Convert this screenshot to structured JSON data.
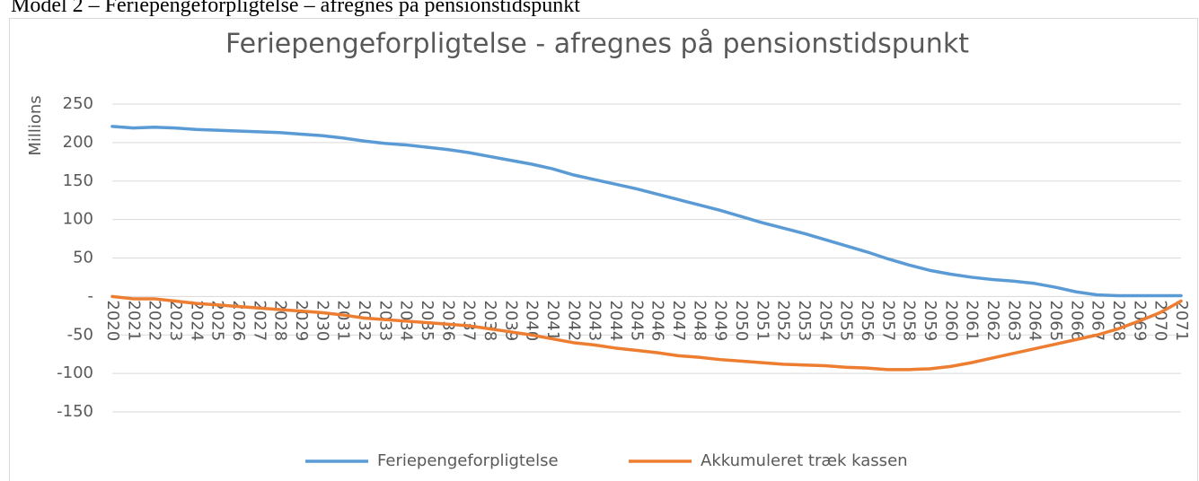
{
  "caption": "Model 2 – Feriepengeforpligtelse – afregnes på pensionstidspunkt",
  "chart_data": {
    "type": "line",
    "title": "Feriepengeforpligtelse - afregnes på pensionstidspunkt",
    "y_label": "Millions",
    "categories": [
      "2020",
      "2021",
      "2022",
      "2023",
      "2024",
      "2025",
      "2026",
      "2027",
      "2028",
      "2029",
      "2030",
      "2031",
      "2032",
      "2033",
      "2034",
      "2035",
      "2036",
      "2037",
      "2038",
      "2039",
      "2040",
      "2041",
      "2042",
      "2043",
      "2044",
      "2045",
      "2046",
      "2047",
      "2048",
      "2049",
      "2050",
      "2051",
      "2052",
      "2053",
      "2054",
      "2055",
      "2056",
      "2057",
      "2058",
      "2059",
      "2060",
      "2061",
      "2062",
      "2063",
      "2064",
      "2065",
      "2066",
      "2067",
      "2068",
      "2069",
      "2070",
      "2071"
    ],
    "series": [
      {
        "name": "Feriepengeforpligtelse",
        "color": "#5b9bd5",
        "values": [
          221,
          219,
          220,
          219,
          217,
          216,
          215,
          214,
          213,
          211,
          209,
          206,
          202,
          199,
          197,
          194,
          191,
          187,
          182,
          177,
          172,
          166,
          158,
          152,
          146,
          140,
          133,
          126,
          119,
          112,
          104,
          96,
          89,
          82,
          74,
          66,
          58,
          49,
          41,
          34,
          29,
          25,
          22,
          20,
          17,
          12,
          6,
          2,
          1,
          1,
          1,
          1
        ]
      },
      {
        "name": "Akkumuleret træk kassen",
        "color": "#ed7d31",
        "values": [
          0,
          -3,
          -3,
          -6,
          -9,
          -11,
          -13,
          -15,
          -17,
          -19,
          -21,
          -24,
          -28,
          -30,
          -32,
          -34,
          -36,
          -38,
          -42,
          -46,
          -50,
          -55,
          -60,
          -63,
          -67,
          -70,
          -73,
          -77,
          -79,
          -82,
          -84,
          -86,
          -88,
          -89,
          -90,
          -92,
          -93,
          -95,
          -95,
          -94,
          -91,
          -86,
          -80,
          -74,
          -68,
          -62,
          -56,
          -50,
          -42,
          -32,
          -21,
          -6
        ]
      }
    ],
    "ylim": [
      -150,
      250
    ],
    "yticks": [
      -150,
      -100,
      -50,
      {
        "value": 0,
        "label": "-"
      },
      50,
      100,
      150,
      200,
      250
    ],
    "grid": true,
    "legend": "bottom"
  }
}
